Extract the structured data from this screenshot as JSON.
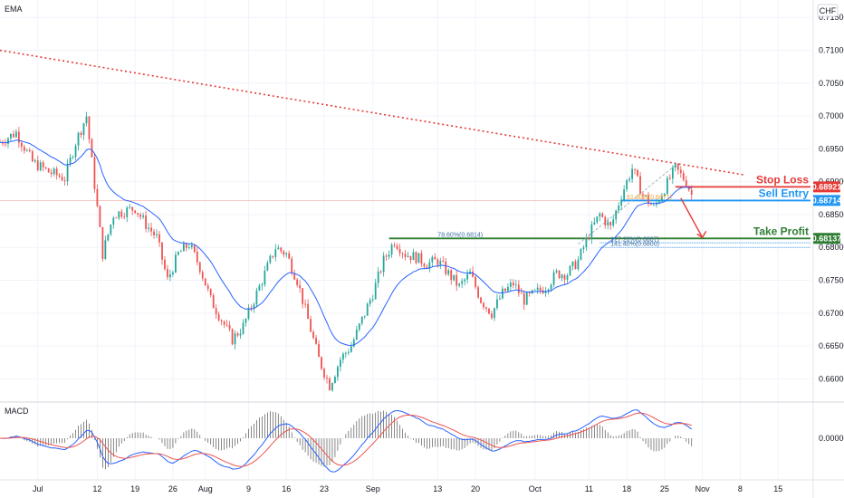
{
  "indicators": {
    "top": "EMA",
    "bottom": "MACD"
  },
  "currency": "CHF",
  "colors": {
    "up": "#26a69a",
    "down": "#ef5350",
    "ema": "#2962ff",
    "macd": "#2962ff",
    "signal": "#ef5350",
    "trend": "#e53935",
    "stop": "#e53935",
    "entry": "#2196f3",
    "tp": "#2e7d32",
    "grid": "#f0f3fa",
    "price_line": "#f5b7b1"
  },
  "chart_data": {
    "type": "candlestick",
    "y_ticks": [
      "0.71500",
      "0.71000",
      "0.70500",
      "0.70000",
      "0.69500",
      "0.69000",
      "0.68500",
      "0.68000",
      "0.67500",
      "0.67000",
      "0.66500",
      "0.66000"
    ],
    "y_tick_values": [
      0.715,
      0.71,
      0.705,
      0.7,
      0.695,
      0.69,
      0.685,
      0.68,
      0.675,
      0.67,
      0.665,
      0.66
    ],
    "x_ticks": [
      {
        "label": "Jul",
        "day": 0
      },
      {
        "label": "12",
        "day": 11
      },
      {
        "label": "19",
        "day": 18
      },
      {
        "label": "26",
        "day": 25
      },
      {
        "label": "Aug",
        "day": 31
      },
      {
        "label": "9",
        "day": 39
      },
      {
        "label": "16",
        "day": 46
      },
      {
        "label": "23",
        "day": 53
      },
      {
        "label": "Sep",
        "day": 62
      },
      {
        "label": "13",
        "day": 74
      },
      {
        "label": "20",
        "day": 81
      },
      {
        "label": "Oct",
        "day": 92
      },
      {
        "label": "11",
        "day": 102
      },
      {
        "label": "18",
        "day": 109
      },
      {
        "label": "25",
        "day": 116
      },
      {
        "label": "Nov",
        "day": 123
      },
      {
        "label": "8",
        "day": 130
      },
      {
        "label": "15",
        "day": 137
      }
    ],
    "x_start_day": -7,
    "x_end_day": 143,
    "close_path": [
      [
        -7,
        0.696
      ],
      [
        -4,
        0.6975
      ],
      [
        -1,
        0.693
      ],
      [
        2,
        0.6915
      ],
      [
        5,
        0.6905
      ],
      [
        7,
        0.696
      ],
      [
        9,
        0.7
      ],
      [
        10,
        0.693
      ],
      [
        11,
        0.686
      ],
      [
        12,
        0.679
      ],
      [
        14,
        0.685
      ],
      [
        16,
        0.6855
      ],
      [
        18,
        0.686
      ],
      [
        20,
        0.6835
      ],
      [
        22,
        0.6815
      ],
      [
        24,
        0.675
      ],
      [
        26,
        0.679
      ],
      [
        28,
        0.6805
      ],
      [
        30,
        0.677
      ],
      [
        32,
        0.672
      ],
      [
        34,
        0.669
      ],
      [
        36,
        0.666
      ],
      [
        38,
        0.668
      ],
      [
        40,
        0.672
      ],
      [
        42,
        0.676
      ],
      [
        44,
        0.68
      ],
      [
        46,
        0.679
      ],
      [
        48,
        0.675
      ],
      [
        50,
        0.669
      ],
      [
        52,
        0.663
      ],
      [
        54,
        0.659
      ],
      [
        56,
        0.663
      ],
      [
        58,
        0.665
      ],
      [
        60,
        0.669
      ],
      [
        62,
        0.673
      ],
      [
        64,
        0.678
      ],
      [
        66,
        0.681
      ],
      [
        68,
        0.679
      ],
      [
        70,
        0.6785
      ],
      [
        72,
        0.6775
      ],
      [
        74,
        0.678
      ],
      [
        76,
        0.676
      ],
      [
        78,
        0.674
      ],
      [
        80,
        0.676
      ],
      [
        82,
        0.672
      ],
      [
        84,
        0.67
      ],
      [
        86,
        0.673
      ],
      [
        88,
        0.6745
      ],
      [
        90,
        0.672
      ],
      [
        92,
        0.673
      ],
      [
        94,
        0.674
      ],
      [
        96,
        0.676
      ],
      [
        98,
        0.676
      ],
      [
        100,
        0.678
      ],
      [
        102,
        0.682
      ],
      [
        104,
        0.685
      ],
      [
        106,
        0.683
      ],
      [
        108,
        0.688
      ],
      [
        110,
        0.692
      ],
      [
        112,
        0.688
      ],
      [
        114,
        0.686
      ],
      [
        116,
        0.689
      ],
      [
        118,
        0.692
      ],
      [
        120,
        0.69
      ],
      [
        121,
        0.688
      ]
    ],
    "ema_period": 20,
    "trendline": {
      "from": [
        -7,
        0.71
      ],
      "to": [
        131,
        0.691
      ]
    },
    "fib_dashed": {
      "from": [
        100,
        0.6805
      ],
      "to": [
        118,
        0.6925
      ]
    },
    "levels": [
      {
        "name": "Stop Loss",
        "value": 0.68921,
        "label": "0.68921",
        "color_key": "stop"
      },
      {
        "name": "Sell Entry",
        "value": 0.68714,
        "label": "0.68714",
        "color_key": "entry"
      },
      {
        "name": "Take Profit",
        "value": 0.68137,
        "label": "0.68137",
        "color_key": "tp"
      }
    ],
    "fib_labels": [
      {
        "text": "61.80%(0.6871)",
        "day": 109,
        "value": 0.6871
      },
      {
        "text": "78.60%(0.6814)",
        "day": 74,
        "value": 0.6814
      },
      {
        "text": "127.20%(0.6807)",
        "day": 106,
        "value": 0.6807
      },
      {
        "text": "141.40%(0.6800)",
        "day": 106,
        "value": 0.68
      }
    ],
    "arrow": {
      "from": [
        119,
        0.6875
      ],
      "to": [
        123,
        0.6815
      ]
    },
    "macd": {
      "y_label": "0.00000",
      "zero": 0
    }
  }
}
